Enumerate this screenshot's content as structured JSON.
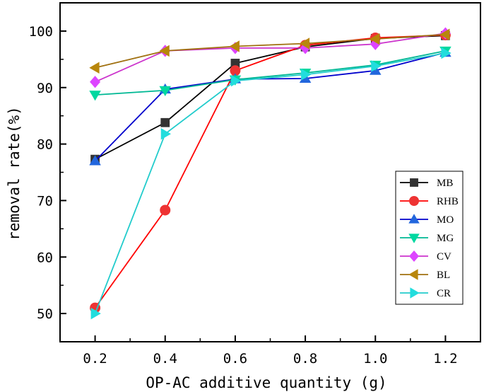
{
  "chart_data": {
    "type": "line",
    "title": "",
    "xlabel": "OP-AC additive quantity (g)",
    "ylabel": "removal rate(%)",
    "x": [
      0.2,
      0.4,
      0.6,
      0.8,
      1.0,
      1.2
    ],
    "x_tick_labels": [
      "0.2",
      "0.4",
      "0.6",
      "0.8",
      "1.0",
      "1.2"
    ],
    "xlim": [
      0.1,
      1.3
    ],
    "ylim": [
      45,
      105
    ],
    "y_ticks": [
      50,
      60,
      70,
      80,
      90,
      100
    ],
    "y_tick_labels": [
      "50",
      "60",
      "70",
      "80",
      "90",
      "100"
    ],
    "grid": false,
    "legend_position": "right",
    "series": [
      {
        "name": "MB",
        "color": "#000000",
        "marker_color": "#333333",
        "marker": "square",
        "values": [
          77.3,
          83.8,
          94.3,
          97.2,
          98.7,
          99.2
        ]
      },
      {
        "name": "RHB",
        "color": "#ff0000",
        "marker_color": "#ee3333",
        "marker": "circle",
        "values": [
          51.0,
          68.3,
          93.0,
          97.5,
          98.8,
          99.3
        ]
      },
      {
        "name": "MO",
        "color": "#0000cc",
        "marker_color": "#2266dd",
        "marker": "triangle-up",
        "values": [
          77.0,
          89.7,
          91.5,
          91.6,
          93.0,
          96.2
        ]
      },
      {
        "name": "MG",
        "color": "#00b894",
        "marker_color": "#00d8a0",
        "marker": "triangle-down",
        "values": [
          88.7,
          89.5,
          91.4,
          92.6,
          94.0,
          96.5
        ]
      },
      {
        "name": "CV",
        "color": "#cc33cc",
        "marker_color": "#dd44ff",
        "marker": "diamond",
        "values": [
          91.0,
          96.5,
          97.0,
          97.0,
          97.7,
          99.6
        ]
      },
      {
        "name": "BL",
        "color": "#a07010",
        "marker_color": "#b8860b",
        "marker": "triangle-left",
        "values": [
          93.5,
          96.5,
          97.3,
          97.8,
          98.6,
          99.4
        ]
      },
      {
        "name": "CR",
        "color": "#22cccc",
        "marker_color": "#22dddd",
        "marker": "triangle-right",
        "values": [
          50.0,
          81.8,
          91.2,
          92.3,
          93.8,
          96.1
        ]
      }
    ]
  }
}
